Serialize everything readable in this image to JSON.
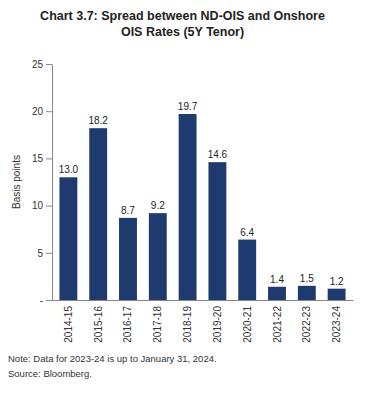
{
  "chart_data": {
    "type": "bar",
    "title": "Chart 3.7: Spread between ND-OIS and Onshore OIS Rates (5Y Tenor)",
    "y_label": "Basis points",
    "categories": [
      "2014-15",
      "2015-16",
      "2016-17",
      "2017-18",
      "2018-19",
      "2019-20",
      "2020-21",
      "2021-22",
      "2022-23",
      "2023-24"
    ],
    "values": [
      13.0,
      18.2,
      8.7,
      9.2,
      19.7,
      14.6,
      6.4,
      1.4,
      1.5,
      1.2
    ],
    "value_labels": [
      "13.0",
      "18.2",
      "8.7",
      "9.2",
      "19.7",
      "14.6",
      "6.4",
      "1.4",
      "1.5",
      "1.2"
    ],
    "color": "#1f3a6e",
    "ylim": [
      0,
      25
    ],
    "yticks": [
      {
        "value": 0,
        "label": "-"
      },
      5,
      10,
      15,
      20,
      25
    ],
    "data_labels": true,
    "grid": false,
    "note": "Note: Data for 2023-24 is up to January 31, 2024.",
    "source": "Source: Bloomberg."
  }
}
